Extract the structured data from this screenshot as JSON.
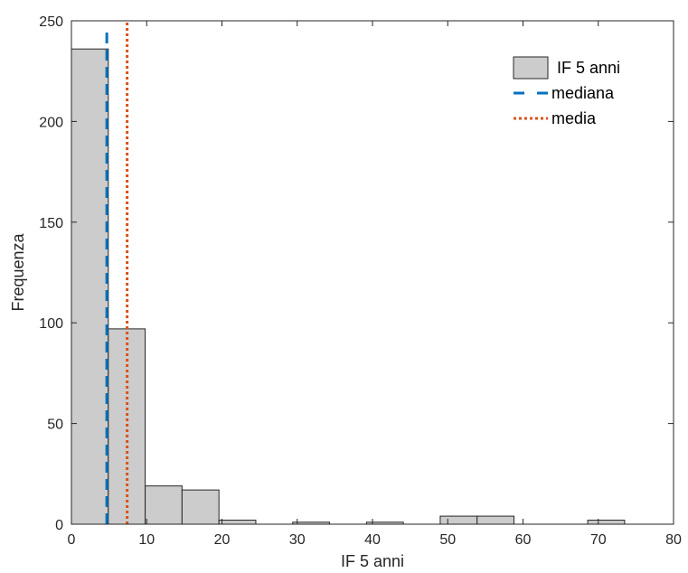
{
  "chart_data": {
    "type": "bar",
    "bin_edges": [
      0,
      4.9,
      9.8,
      14.7,
      19.6,
      24.5,
      29.4,
      34.3,
      39.2,
      44.1,
      49.0,
      53.9,
      58.8,
      63.7,
      68.6,
      73.5
    ],
    "values": [
      236,
      97,
      19,
      17,
      2,
      0,
      1,
      0,
      1,
      0,
      4,
      4,
      0,
      0,
      2
    ],
    "median": 4.7,
    "mean": 7.4,
    "xlabel": "IF 5 anni",
    "ylabel": "Frequenza",
    "xlim": [
      0,
      80
    ],
    "ylim": [
      0,
      250
    ],
    "xticks": [
      0,
      10,
      20,
      30,
      40,
      50,
      60,
      70,
      80
    ],
    "yticks": [
      0,
      50,
      100,
      150,
      200,
      250
    ],
    "grid": false,
    "legend_position": "top-right",
    "legend": [
      {
        "label": "IF 5 anni",
        "kind": "bar"
      },
      {
        "label": "mediana",
        "kind": "dashed-line"
      },
      {
        "label": "media",
        "kind": "dotted-line"
      }
    ],
    "colors": {
      "bar_fill": "#cccccc",
      "bar_edge": "#262626",
      "median": "#0072bd",
      "mean": "#d95319"
    }
  }
}
